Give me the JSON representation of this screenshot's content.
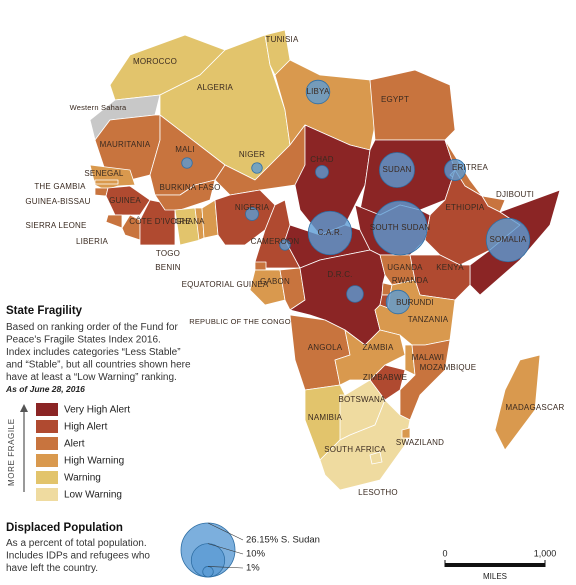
{
  "legend": {
    "title": "State Fragility",
    "description": [
      "Based on ranking order of the Fund for",
      "Peace's Fragile States Index 2016.",
      "Index includes categories “Less Stable”",
      "and “Stable”, but all countries shown here",
      "have at least a “Low Warning” ranking."
    ],
    "date": "As of June 28, 2016",
    "axis_label": "MORE FRAGILE",
    "categories": [
      {
        "name": "Very High Alert",
        "color": "#8b2525"
      },
      {
        "name": "High Alert",
        "color": "#b04a30"
      },
      {
        "name": "Alert",
        "color": "#c8743e"
      },
      {
        "name": "High Warning",
        "color": "#d9994e"
      },
      {
        "name": "Warning",
        "color": "#e2c46c"
      },
      {
        "name": "Low Warning",
        "color": "#efdba0"
      }
    ]
  },
  "displaced": {
    "title": "Displaced Population",
    "description": [
      "As a percent of total population.",
      "Includes IDPs and refugees who",
      "have left the country."
    ],
    "color": "#5b9bd5",
    "key": [
      {
        "value": 26.15,
        "label": "26.15% S. Sudan"
      },
      {
        "value": 10,
        "label": "10%"
      },
      {
        "value": 1,
        "label": "1%"
      }
    ]
  },
  "scale": {
    "ticks": [
      {
        "value": 0,
        "label": "0"
      },
      {
        "value": 1000,
        "label": "1,000"
      }
    ],
    "unit": "MILES"
  },
  "countries": [
    {
      "name": "MOROCCO",
      "fragility": "Warning"
    },
    {
      "name": "Western Sahara"
    },
    {
      "name": "ALGERIA",
      "fragility": "Warning"
    },
    {
      "name": "TUNISIA",
      "fragility": "Warning"
    },
    {
      "name": "LIBYA",
      "fragility": "High Warning",
      "displaced": 5
    },
    {
      "name": "EGYPT",
      "fragility": "Alert"
    },
    {
      "name": "MAURITANIA",
      "fragility": "Alert"
    },
    {
      "name": "MALI",
      "fragility": "Alert",
      "displaced": 1
    },
    {
      "name": "NIGER",
      "fragility": "Alert",
      "displaced": 1
    },
    {
      "name": "CHAD",
      "fragility": "Very High Alert",
      "displaced": 1.5
    },
    {
      "name": "SUDAN",
      "fragility": "Very High Alert",
      "displaced": 11
    },
    {
      "name": "ERITREA",
      "fragility": "Alert",
      "displaced": 4
    },
    {
      "name": "DJIBOUTI",
      "fragility": "Alert"
    },
    {
      "name": "ETHIOPIA",
      "fragility": "High Alert"
    },
    {
      "name": "SOMALIA",
      "fragility": "Very High Alert",
      "displaced": 17
    },
    {
      "name": "SENEGAL",
      "fragility": "High Warning"
    },
    {
      "name": "THE GAMBIA",
      "fragility": "High Warning"
    },
    {
      "name": "GUINEA-BISSAU",
      "fragility": "Alert"
    },
    {
      "name": "GUINEA",
      "fragility": "High Alert"
    },
    {
      "name": "SIERRA LEONE",
      "fragility": "Alert"
    },
    {
      "name": "LIBERIA",
      "fragility": "Alert"
    },
    {
      "name": "CÔTE D'IVOIRE",
      "fragility": "High Alert"
    },
    {
      "name": "BURKINA FASO",
      "fragility": "Alert"
    },
    {
      "name": "GHANA",
      "fragility": "Warning"
    },
    {
      "name": "TOGO",
      "fragility": "High Warning"
    },
    {
      "name": "BENIN",
      "fragility": "High Warning"
    },
    {
      "name": "NIGERIA",
      "fragility": "High Alert",
      "displaced": 1.5
    },
    {
      "name": "CAMEROON",
      "fragility": "High Alert",
      "displaced": 1
    },
    {
      "name": "C.A.R.",
      "fragility": "Very High Alert",
      "displaced": 17
    },
    {
      "name": "SOUTH SUDAN",
      "fragility": "Very High Alert",
      "displaced": 26.15
    },
    {
      "name": "EQUATORIAL GUINEA",
      "fragility": "Alert"
    },
    {
      "name": "GABON",
      "fragility": "High Warning"
    },
    {
      "name": "REPUBLIC OF THE CONGO",
      "fragility": "Alert"
    },
    {
      "name": "D.R.C.",
      "fragility": "Very High Alert",
      "displaced": 2.5
    },
    {
      "name": "UGANDA",
      "fragility": "Alert"
    },
    {
      "name": "RWANDA",
      "fragility": "Alert"
    },
    {
      "name": "BURUNDI",
      "fragility": "High Alert",
      "displaced": 5
    },
    {
      "name": "KENYA",
      "fragility": "High Alert"
    },
    {
      "name": "TANZANIA",
      "fragility": "High Warning"
    },
    {
      "name": "ANGOLA",
      "fragility": "Alert"
    },
    {
      "name": "ZAMBIA",
      "fragility": "High Warning"
    },
    {
      "name": "MALAWI",
      "fragility": "High Warning"
    },
    {
      "name": "MOZAMBIQUE",
      "fragility": "Alert"
    },
    {
      "name": "ZIMBABWE",
      "fragility": "High Alert"
    },
    {
      "name": "NAMIBIA",
      "fragility": "Warning"
    },
    {
      "name": "BOTSWANA",
      "fragility": "Low Warning"
    },
    {
      "name": "SOUTH AFRICA",
      "fragility": "Low Warning"
    },
    {
      "name": "SWAZILAND",
      "fragility": "High Warning"
    },
    {
      "name": "LESOTHO",
      "fragility": "Low Warning"
    },
    {
      "name": "MADAGASCAR",
      "fragility": "High Warning"
    }
  ]
}
